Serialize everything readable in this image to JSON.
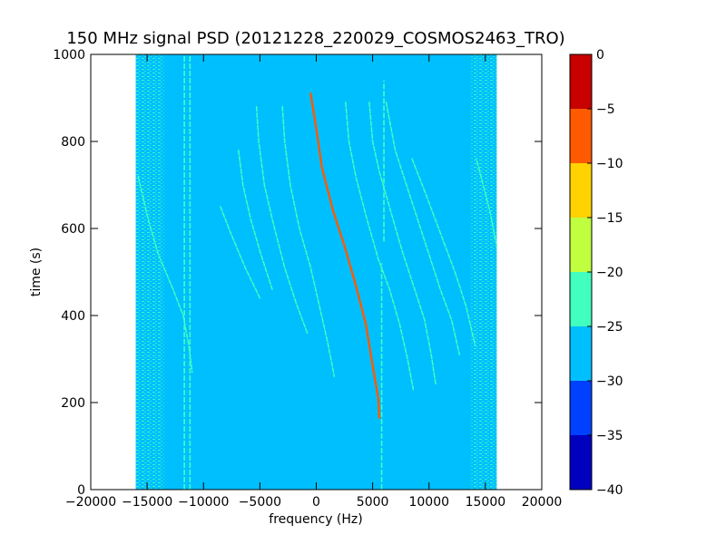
{
  "chart_data": {
    "type": "heatmap",
    "title": "150 MHz signal PSD (20121228_220029_COSMOS2463_TRO)",
    "xlabel": "frequency (Hz)",
    "ylabel": "time (s)",
    "xlim": [
      -20000,
      20000
    ],
    "ylim": [
      0,
      1000
    ],
    "x_ticks": [
      -20000,
      -15000,
      -10000,
      -5000,
      0,
      5000,
      10000,
      15000,
      20000
    ],
    "y_ticks": [
      0,
      200,
      400,
      600,
      800,
      1000
    ],
    "data_extent": {
      "x": [
        -16000,
        16000
      ],
      "y": [
        0,
        1000
      ]
    },
    "background_level": -27.5,
    "noise_edges_hz": {
      "left": [
        -16000,
        -13500
      ],
      "right": [
        13700,
        16000
      ]
    },
    "colorbar": {
      "range": [
        -40,
        0
      ],
      "ticks": [
        0,
        -5,
        -10,
        -15,
        -20,
        -25,
        -30,
        -35,
        -40
      ],
      "levels": [
        -40,
        -35,
        -30,
        -25,
        -20,
        -15,
        -10,
        -5,
        0
      ],
      "colors": [
        "#0000bf",
        "#0040ff",
        "#00bfff",
        "#40ffbf",
        "#bfff40",
        "#ffd200",
        "#ff5a00",
        "#c80000"
      ]
    },
    "vertical_lines": [
      {
        "x": -11700,
        "y": [
          0,
          1000
        ],
        "level": -22
      },
      {
        "x": -11200,
        "y": [
          0,
          1000
        ],
        "level": -22
      },
      {
        "x": 5800,
        "y": [
          0,
          520
        ],
        "level": -22
      },
      {
        "x": 6000,
        "y": [
          570,
          940
        ],
        "level": -22
      }
    ],
    "series": [
      {
        "level": -5,
        "points": [
          [
            -500,
            910
          ],
          [
            0,
            830
          ],
          [
            500,
            740
          ],
          [
            1500,
            640
          ],
          [
            2500,
            560
          ],
          [
            3500,
            470
          ],
          [
            4400,
            380
          ],
          [
            4900,
            300
          ],
          [
            5500,
            210
          ],
          [
            5600,
            165
          ]
        ]
      },
      {
        "level": -20,
        "points": [
          [
            -3000,
            880
          ],
          [
            -2800,
            800
          ],
          [
            -2300,
            700
          ],
          [
            -1500,
            600
          ],
          [
            -500,
            510
          ],
          [
            300,
            420
          ],
          [
            1000,
            340
          ],
          [
            1600,
            260
          ]
        ]
      },
      {
        "level": -20,
        "points": [
          [
            -5300,
            880
          ],
          [
            -5100,
            800
          ],
          [
            -4600,
            700
          ],
          [
            -3800,
            610
          ],
          [
            -2800,
            510
          ],
          [
            -1800,
            430
          ],
          [
            -800,
            360
          ]
        ]
      },
      {
        "level": -20,
        "points": [
          [
            -6900,
            780
          ],
          [
            -6500,
            700
          ],
          [
            -5800,
            620
          ],
          [
            -4900,
            540
          ],
          [
            -3900,
            460
          ]
        ]
      },
      {
        "level": -22,
        "points": [
          [
            -8500,
            650
          ],
          [
            -7600,
            590
          ],
          [
            -6300,
            510
          ],
          [
            -5000,
            440
          ]
        ]
      },
      {
        "level": -20,
        "points": [
          [
            2600,
            890
          ],
          [
            2900,
            800
          ],
          [
            3500,
            720
          ],
          [
            4400,
            630
          ],
          [
            5500,
            530
          ],
          [
            6500,
            460
          ],
          [
            7400,
            380
          ],
          [
            8100,
            300
          ],
          [
            8600,
            230
          ]
        ]
      },
      {
        "level": -20,
        "points": [
          [
            4700,
            890
          ],
          [
            5000,
            800
          ],
          [
            5600,
            730
          ],
          [
            6600,
            640
          ],
          [
            7600,
            550
          ],
          [
            8600,
            470
          ],
          [
            9600,
            390
          ],
          [
            10200,
            310
          ],
          [
            10600,
            240
          ]
        ]
      },
      {
        "level": -20,
        "points": [
          [
            6200,
            890
          ],
          [
            7000,
            780
          ],
          [
            8000,
            700
          ],
          [
            9000,
            620
          ],
          [
            10000,
            540
          ],
          [
            11000,
            460
          ],
          [
            12000,
            390
          ],
          [
            12700,
            310
          ]
        ]
      },
      {
        "level": -22,
        "points": [
          [
            8500,
            760
          ],
          [
            9700,
            680
          ],
          [
            11000,
            590
          ],
          [
            12300,
            500
          ],
          [
            13300,
            420
          ],
          [
            14100,
            330
          ]
        ]
      },
      {
        "level": -22,
        "points": [
          [
            -15800,
            720
          ],
          [
            -14900,
            620
          ],
          [
            -14000,
            540
          ],
          [
            -12700,
            460
          ],
          [
            -11800,
            400
          ],
          [
            -11300,
            330
          ],
          [
            -11000,
            270
          ]
        ]
      },
      {
        "level": -22,
        "points": [
          [
            16000,
            560
          ],
          [
            15400,
            640
          ],
          [
            14800,
            700
          ],
          [
            14200,
            760
          ]
        ]
      }
    ]
  }
}
